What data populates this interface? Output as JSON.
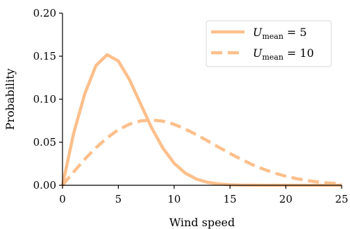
{
  "chart_data": {
    "type": "line",
    "xlabel": "Wind speed",
    "ylabel": "Probability",
    "xlim": [
      0,
      25
    ],
    "ylim": [
      0,
      0.2
    ],
    "xticks": [
      0,
      5,
      10,
      15,
      20,
      25
    ],
    "xtick_labels": [
      "0",
      "5",
      "10",
      "15",
      "20",
      "25"
    ],
    "yticks": [
      0.0,
      0.05,
      0.1,
      0.15,
      0.2
    ],
    "ytick_labels": [
      "0.00",
      "0.05",
      "0.10",
      "0.15",
      "0.20"
    ],
    "grid": false,
    "legend_position": "top-right",
    "x": [
      0,
      1,
      2,
      3,
      4,
      5,
      6,
      7,
      8,
      9,
      10,
      11,
      12,
      13,
      14,
      15,
      16,
      17,
      18,
      19,
      20,
      21,
      22,
      23,
      24,
      25
    ],
    "series": [
      {
        "name": "U_mean = 5",
        "legend_main": "U",
        "legend_sub": "mean",
        "legend_rest": " = 5",
        "style": "solid",
        "color": "#fdbf8b",
        "values": [
          0.0,
          0.0605,
          0.1065,
          0.1392,
          0.1517,
          0.1444,
          0.1227,
          0.0944,
          0.0664,
          0.043,
          0.0256,
          0.0141,
          0.0072,
          0.0034,
          0.0015,
          0.0006,
          0.0002,
          0.0001,
          0.0,
          0.0,
          0.0,
          0.0,
          0.0,
          0.0,
          0.0,
          0.0
        ]
      },
      {
        "name": "U_mean = 10",
        "legend_main": "U",
        "legend_sub": "mean",
        "legend_rest": " = 10",
        "style": "dashed",
        "color": "#fdbf8b",
        "values": [
          0.0,
          0.0155,
          0.0304,
          0.0437,
          0.0552,
          0.0645,
          0.071,
          0.0748,
          0.0759,
          0.0745,
          0.0708,
          0.0653,
          0.0588,
          0.0516,
          0.0442,
          0.037,
          0.0302,
          0.024,
          0.0187,
          0.0142,
          0.0105,
          0.0076,
          0.0054,
          0.0037,
          0.0025,
          0.0016
        ]
      }
    ]
  }
}
